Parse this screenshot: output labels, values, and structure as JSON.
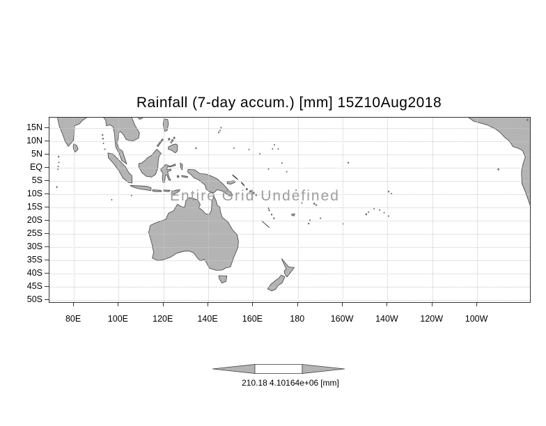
{
  "title": "Rainfall (7-day accum.) [mm] 15Z10Aug2018",
  "overlay_message": "Entire Grid Undefined",
  "axes": {
    "lat_labels": [
      "15N",
      "10N",
      "5N",
      "EQ",
      "5S",
      "10S",
      "15S",
      "20S",
      "25S",
      "30S",
      "35S",
      "40S",
      "45S",
      "50S"
    ],
    "lon_labels": [
      "80E",
      "100E",
      "120E",
      "140E",
      "160E",
      "180",
      "160W",
      "140W",
      "120W",
      "100W"
    ]
  },
  "colorbar": {
    "left_label": "210.18",
    "right_label": "4.10164e+06",
    "unit": "[mm]"
  },
  "colors": {
    "land": "#b4b4b4",
    "coastline": "#404040",
    "frame": "#333333",
    "grid": "#c9c9c9",
    "overlay_text": "#9e9e9e",
    "text": "#000000"
  },
  "chart_data": {
    "type": "heatmap",
    "title": "Rainfall (7-day accum.) [mm] 15Z10Aug2018",
    "variable": "Rainfall (7-day accum.)",
    "unit": "mm",
    "valid_time": "15Z10Aug2018",
    "x_ticks": [
      "80E",
      "100E",
      "120E",
      "140E",
      "160E",
      "180",
      "160W",
      "140W",
      "120W",
      "100W"
    ],
    "y_ticks": [
      "15N",
      "10N",
      "5N",
      "EQ",
      "5S",
      "10S",
      "15S",
      "20S",
      "25S",
      "30S",
      "35S",
      "40S",
      "45S",
      "50S"
    ],
    "values": [],
    "status": "Entire Grid Undefined",
    "colorbar_labels": [
      "210.18",
      "4.10164e+06"
    ],
    "grid": true,
    "legend_position": "bottom"
  }
}
